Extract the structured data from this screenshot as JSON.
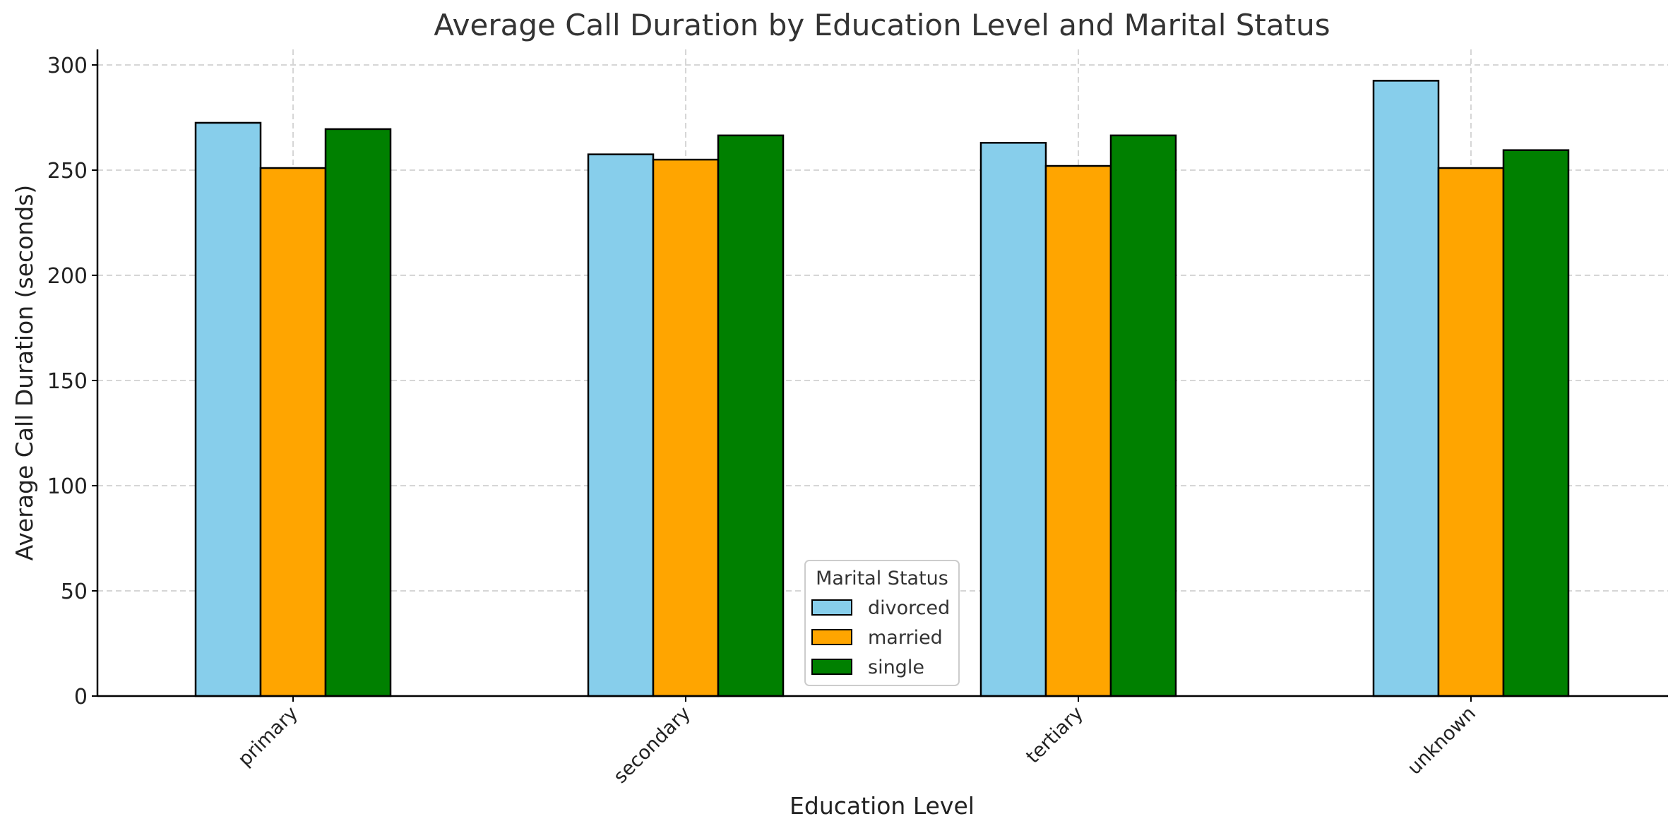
{
  "chart_data": {
    "type": "bar",
    "title": "Average Call Duration by Education Level and Marital Status",
    "xlabel": "Education Level",
    "ylabel": "Average Call Duration (seconds)",
    "categories": [
      "primary",
      "secondary",
      "tertiary",
      "unknown"
    ],
    "series": [
      {
        "name": "divorced",
        "color": "#87CEEB",
        "values": [
          272.5,
          257.5,
          263,
          292.5
        ]
      },
      {
        "name": "married",
        "color": "#FFA500",
        "values": [
          251,
          255,
          252,
          251
        ]
      },
      {
        "name": "single",
        "color": "#008000",
        "values": [
          269.5,
          266.5,
          266.5,
          259.5
        ]
      }
    ],
    "ylim": [
      0,
      300
    ],
    "yticks": [
      0,
      50,
      100,
      150,
      200,
      250,
      300
    ],
    "grid": true,
    "legend": {
      "title": "Marital Status",
      "placement": "lower-center"
    }
  }
}
